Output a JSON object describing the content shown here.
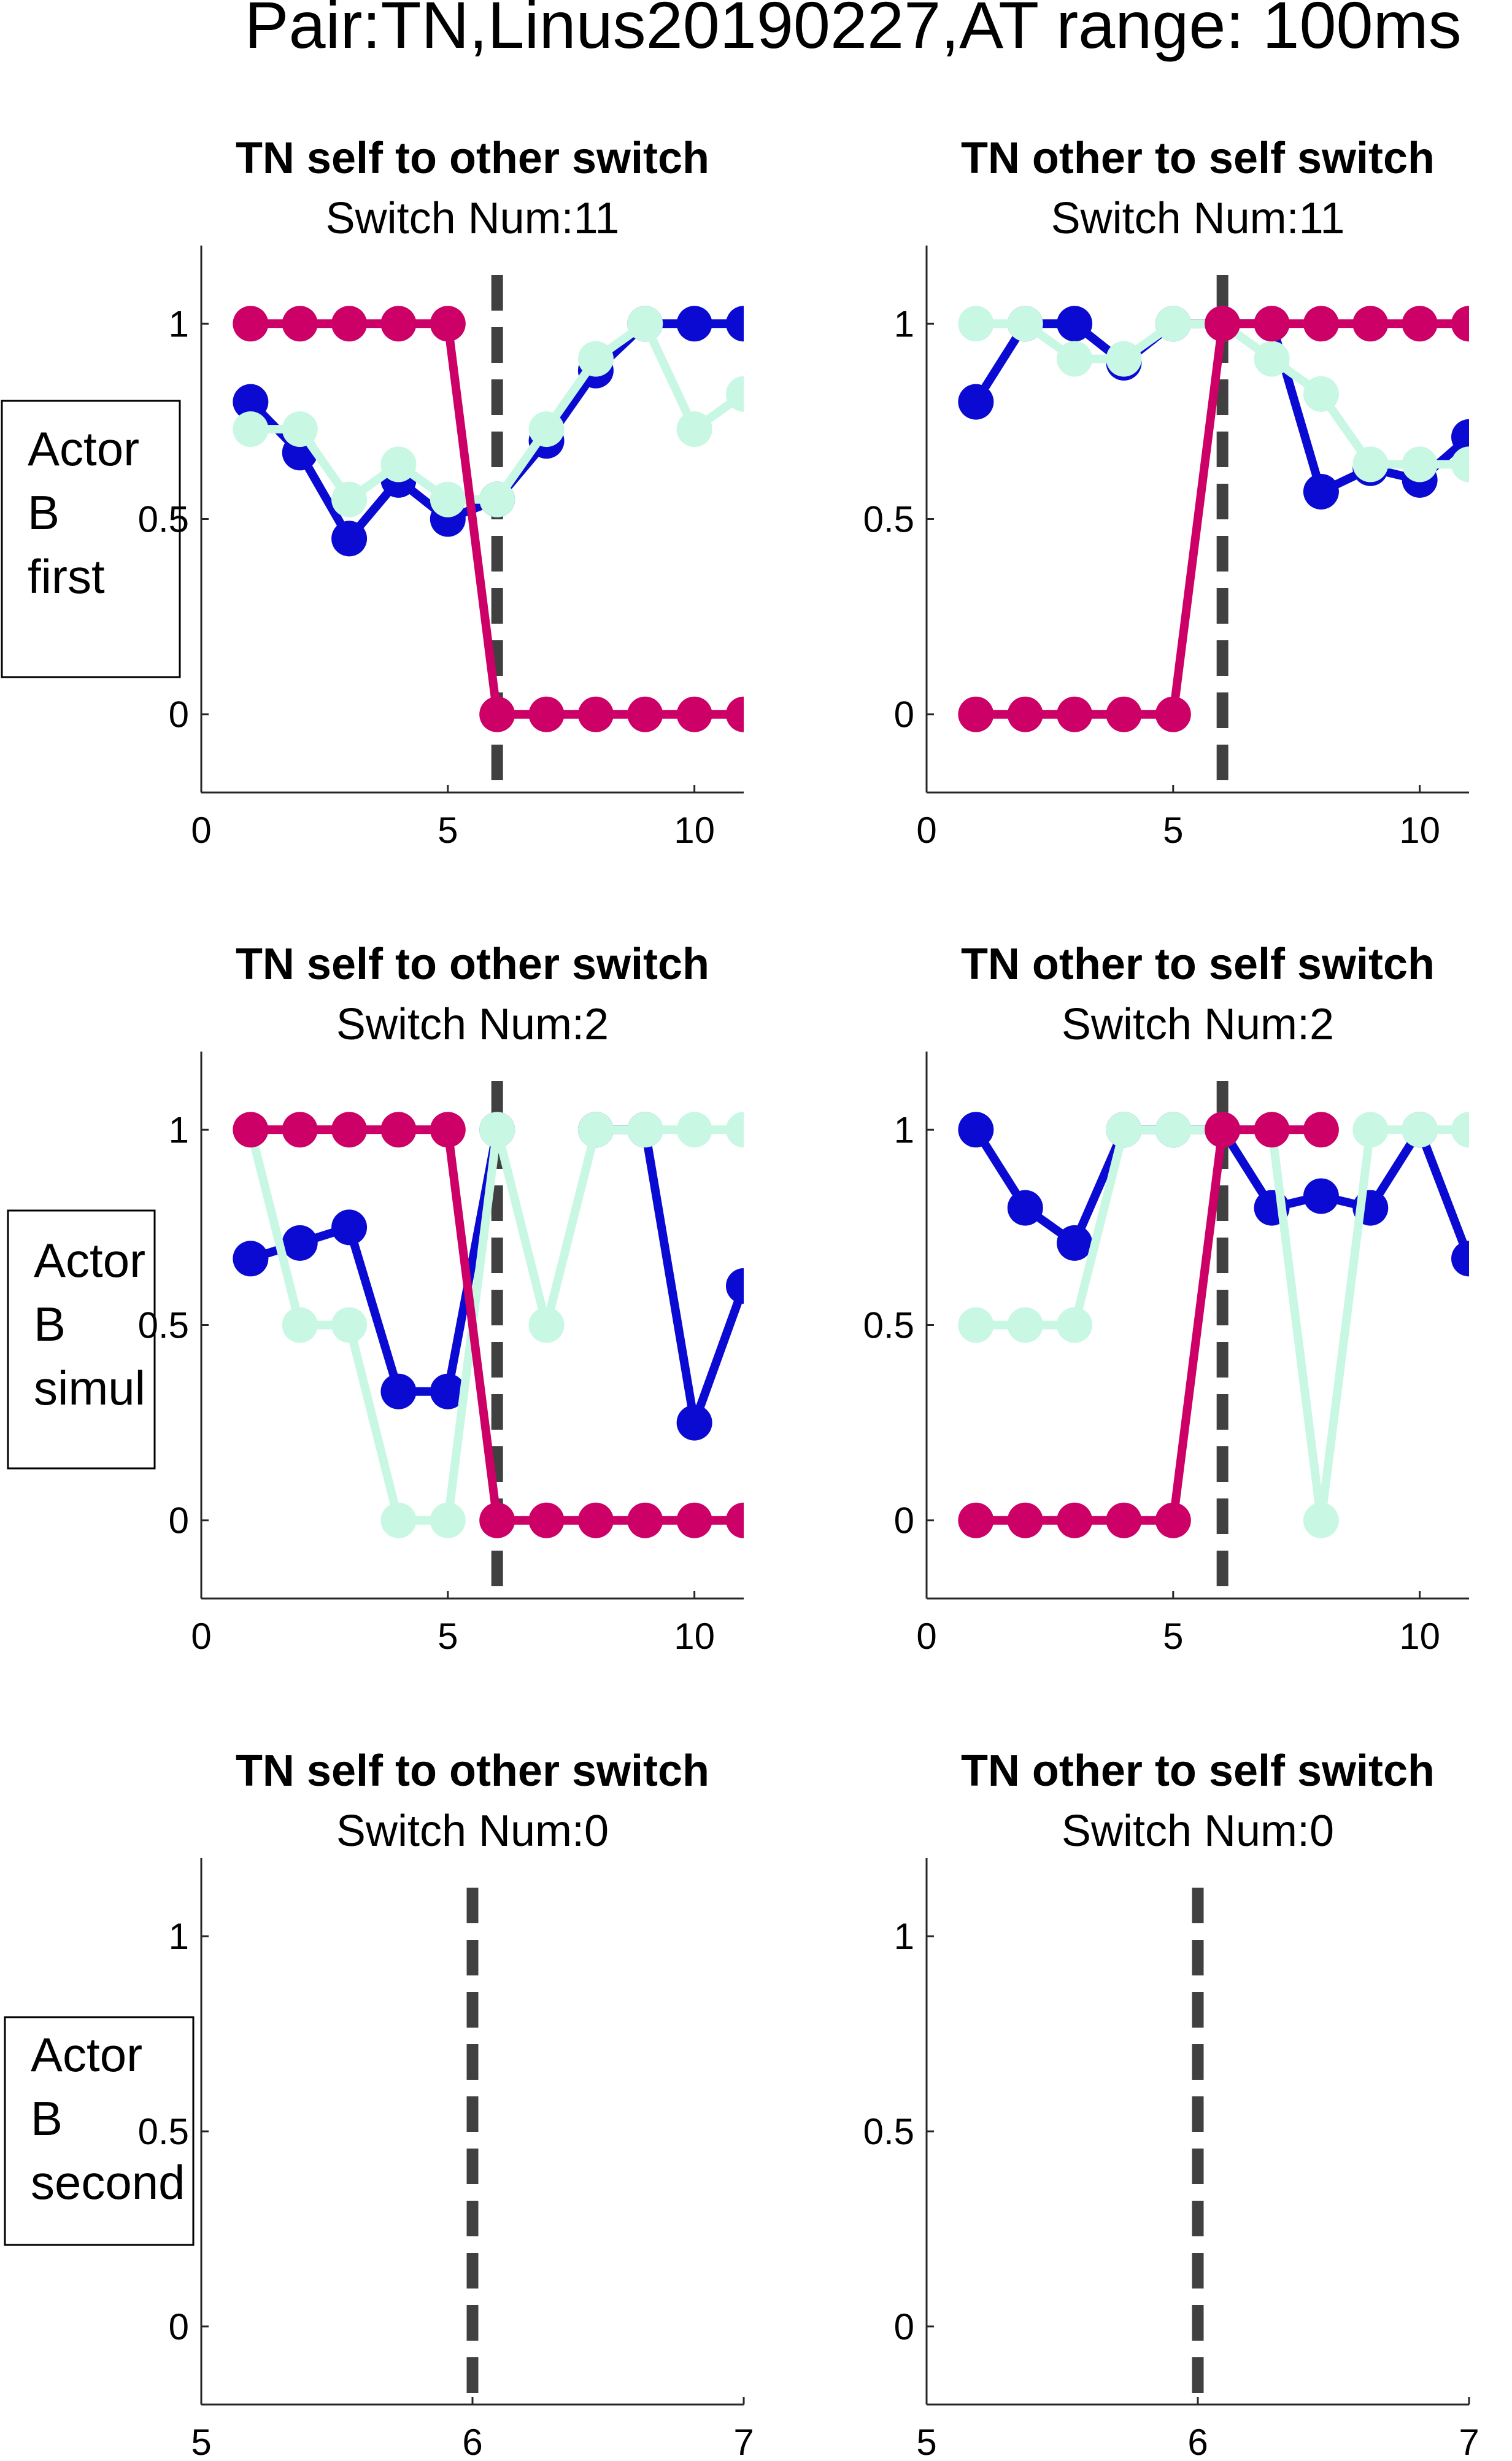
{
  "figure_title": "Pair:TN,Linus20190227,AT range: 100ms",
  "row_labels": [
    [
      "Actor",
      "B",
      "first"
    ],
    [
      "Actor",
      "B",
      "simul"
    ],
    [
      "Actor",
      "B",
      "second"
    ]
  ],
  "colors": {
    "series_magenta": "#cc0066",
    "series_blue": "#0a0ad2",
    "series_mint": "#c8f7e4",
    "switch_line": "#404040",
    "axis": "#262626"
  },
  "chart_data": [
    {
      "type": "line",
      "title": "TN self to other switch",
      "subtitle": "Switch Num:11",
      "xlim": [
        0,
        11
      ],
      "ylim": [
        -0.2,
        1.2
      ],
      "xticks": [
        0,
        5,
        10
      ],
      "yticks": [
        0,
        0.5,
        1
      ],
      "xtick_labels": [
        "0",
        "5",
        "10"
      ],
      "ytick_labels": [
        "0",
        "0.5",
        "1"
      ],
      "switch_x": 6,
      "x": [
        1,
        2,
        3,
        4,
        5,
        6,
        7,
        8,
        9,
        10,
        11
      ],
      "series": [
        {
          "color": "#0a0ad2",
          "values": [
            0.8,
            0.67,
            0.45,
            0.6,
            0.5,
            0.55,
            0.7,
            0.88,
            1,
            1,
            1
          ]
        },
        {
          "color": "#c8f7e4",
          "values": [
            0.73,
            0.73,
            0.55,
            0.64,
            0.55,
            0.55,
            0.73,
            0.91,
            1,
            0.73,
            0.82
          ]
        },
        {
          "color": "#cc0066",
          "values": [
            1,
            1,
            1,
            1,
            1,
            0,
            0,
            0,
            0,
            0,
            0
          ]
        }
      ]
    },
    {
      "type": "line",
      "title": "TN other to self switch",
      "subtitle": "Switch Num:11",
      "xlim": [
        0,
        11
      ],
      "ylim": [
        -0.2,
        1.2
      ],
      "xticks": [
        0,
        5,
        10
      ],
      "yticks": [
        0,
        0.5,
        1
      ],
      "xtick_labels": [
        "0",
        "5",
        "10"
      ],
      "ytick_labels": [
        "0",
        "0.5",
        "1"
      ],
      "switch_x": 6,
      "x": [
        1,
        2,
        3,
        4,
        5,
        6,
        7,
        8,
        9,
        10,
        11
      ],
      "series": [
        {
          "color": "#0a0ad2",
          "values": [
            0.8,
            1,
            1,
            0.9,
            1,
            1,
            1,
            0.57,
            0.63,
            0.6,
            0.71
          ]
        },
        {
          "color": "#c8f7e4",
          "values": [
            1,
            1,
            0.91,
            0.91,
            1,
            1,
            0.91,
            0.82,
            0.64,
            0.64,
            0.64
          ]
        },
        {
          "color": "#cc0066",
          "values": [
            0,
            0,
            0,
            0,
            0,
            1,
            1,
            1,
            1,
            1,
            1
          ]
        }
      ]
    },
    {
      "type": "line",
      "title": "TN self to other switch",
      "subtitle": "Switch Num:2",
      "xlim": [
        0,
        11
      ],
      "ylim": [
        -0.2,
        1.2
      ],
      "xticks": [
        0,
        5,
        10
      ],
      "yticks": [
        0,
        0.5,
        1
      ],
      "xtick_labels": [
        "0",
        "5",
        "10"
      ],
      "ytick_labels": [
        "0",
        "0.5",
        "1"
      ],
      "switch_x": 6,
      "x": [
        1,
        2,
        3,
        4,
        5,
        6,
        7,
        8,
        9,
        10,
        11
      ],
      "series": [
        {
          "color": "#0a0ad2",
          "values": [
            0.67,
            0.71,
            0.75,
            0.33,
            0.33,
            1,
            null,
            1,
            1,
            0.25,
            0.6
          ]
        },
        {
          "color": "#c8f7e4",
          "values": [
            1,
            0.5,
            0.5,
            0,
            0,
            1,
            0.5,
            1,
            1,
            1,
            1
          ]
        },
        {
          "color": "#cc0066",
          "values": [
            1,
            1,
            1,
            1,
            1,
            0,
            0,
            0,
            0,
            0,
            0
          ]
        }
      ]
    },
    {
      "type": "line",
      "title": "TN other to self switch",
      "subtitle": "Switch Num:2",
      "xlim": [
        0,
        11
      ],
      "ylim": [
        -0.2,
        1.2
      ],
      "xticks": [
        0,
        5,
        10
      ],
      "yticks": [
        0,
        0.5,
        1
      ],
      "xtick_labels": [
        "0",
        "5",
        "10"
      ],
      "ytick_labels": [
        "0",
        "0.5",
        "1"
      ],
      "switch_x": 6,
      "x": [
        1,
        2,
        3,
        4,
        5,
        6,
        7,
        8,
        9,
        10,
        11
      ],
      "series": [
        {
          "color": "#0a0ad2",
          "values": [
            1,
            0.8,
            0.71,
            1,
            1,
            1,
            0.8,
            0.83,
            0.8,
            1,
            0.67
          ]
        },
        {
          "color": "#c8f7e4",
          "values": [
            0.5,
            0.5,
            0.5,
            1,
            1,
            1,
            1,
            0,
            1,
            1,
            1
          ]
        },
        {
          "color": "#cc0066",
          "values": [
            0,
            0,
            0,
            0,
            0,
            1,
            1,
            1,
            null,
            null,
            null
          ]
        }
      ]
    },
    {
      "type": "line",
      "title": "TN self to other switch",
      "subtitle": "Switch Num:0",
      "xlim": [
        5,
        7
      ],
      "ylim": [
        -0.2,
        1.2
      ],
      "xticks": [
        5,
        6,
        7
      ],
      "yticks": [
        0,
        0.5,
        1
      ],
      "xtick_labels": [
        "5",
        "6",
        "7"
      ],
      "ytick_labels": [
        "0",
        "0.5",
        "1"
      ],
      "switch_x": 6,
      "x": [],
      "series": []
    },
    {
      "type": "line",
      "title": "TN other to self switch",
      "subtitle": "Switch Num:0",
      "xlim": [
        5,
        7
      ],
      "ylim": [
        -0.2,
        1.2
      ],
      "xticks": [
        5,
        6,
        7
      ],
      "yticks": [
        0,
        0.5,
        1
      ],
      "xtick_labels": [
        "5",
        "6",
        "7"
      ],
      "ytick_labels": [
        "0",
        "0.5",
        "1"
      ],
      "switch_x": 6,
      "x": [],
      "series": []
    }
  ]
}
